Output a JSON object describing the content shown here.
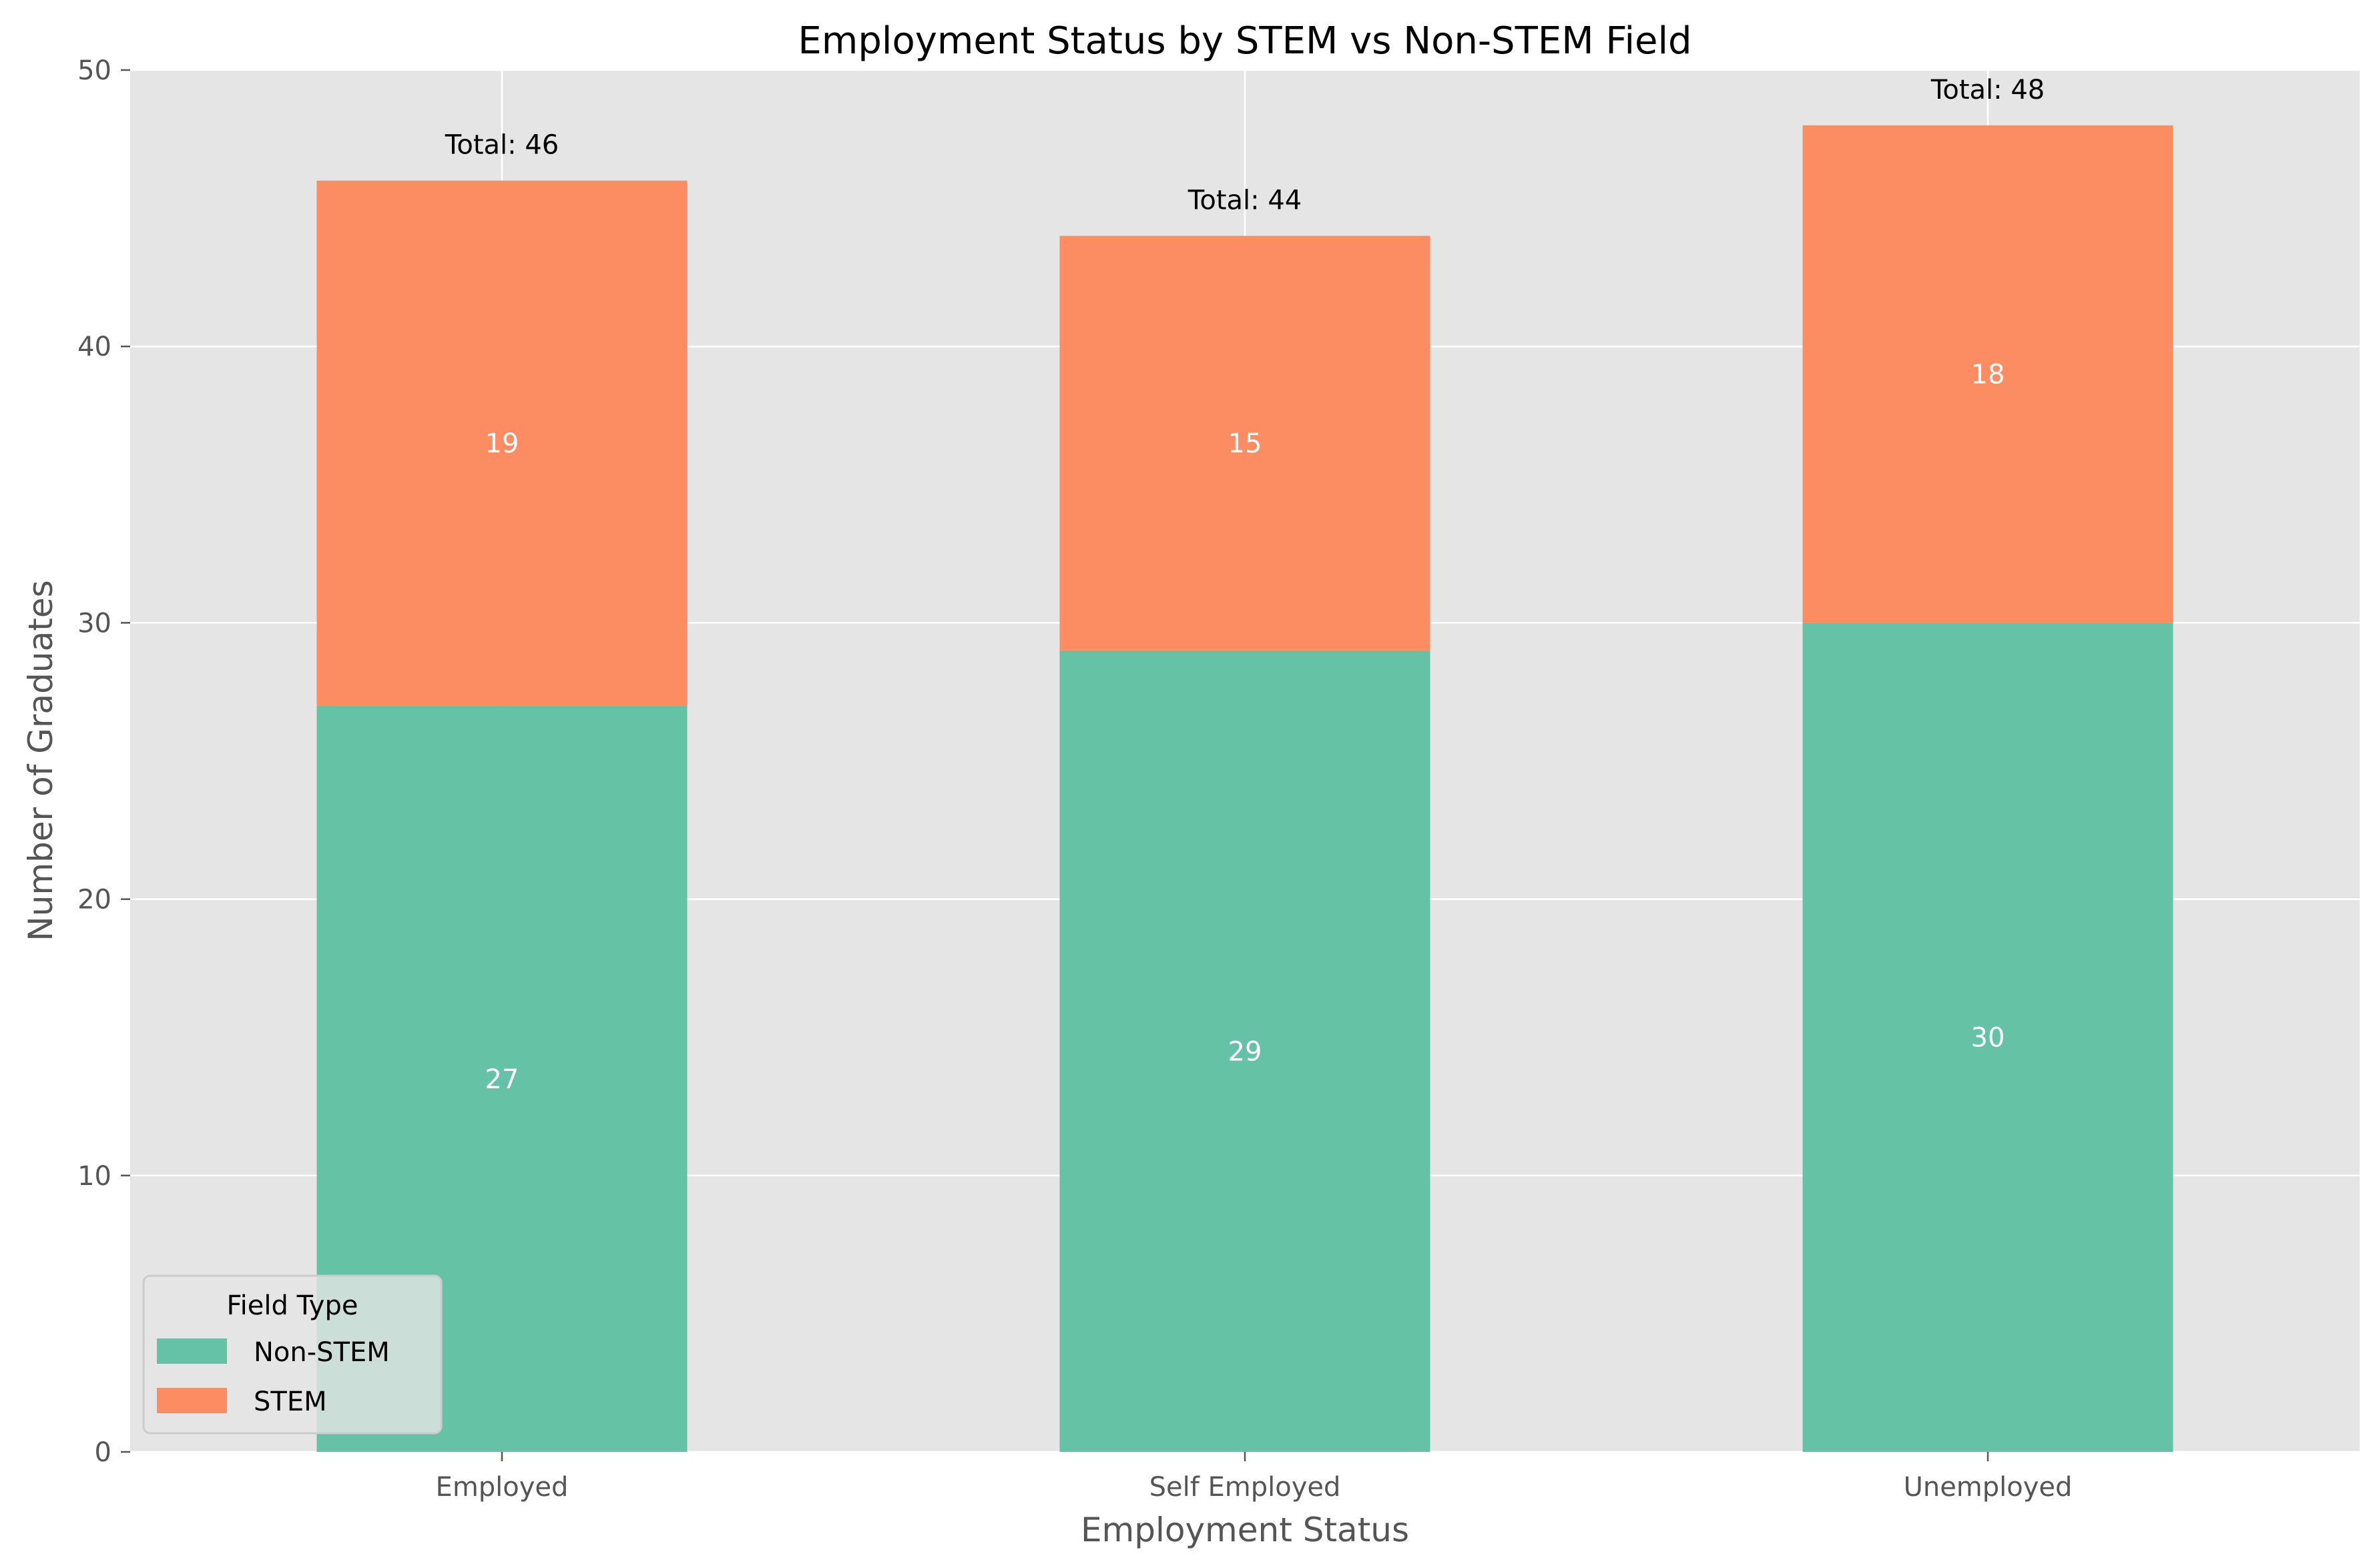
{
  "chart_data": {
    "type": "bar",
    "stacked": true,
    "title": "Employment Status by STEM vs Non-STEM Field",
    "xlabel": "Employment Status",
    "ylabel": "Number of Graduates",
    "categories": [
      "Employed",
      "Self Employed",
      "Unemployed"
    ],
    "series": [
      {
        "name": "Non-STEM",
        "values": [
          27,
          29,
          30
        ],
        "color": "#66c2a5"
      },
      {
        "name": "STEM",
        "values": [
          19,
          15,
          18
        ],
        "color": "#fc8d62"
      }
    ],
    "totals": [
      46,
      44,
      48
    ],
    "total_prefix": "Total: ",
    "ylim": [
      0,
      50
    ],
    "yticks": [
      0,
      10,
      20,
      30,
      40,
      50
    ],
    "grid": true,
    "legend": {
      "title": "Field Type",
      "placement": "lower-left"
    },
    "background": "#e5e5e5"
  }
}
